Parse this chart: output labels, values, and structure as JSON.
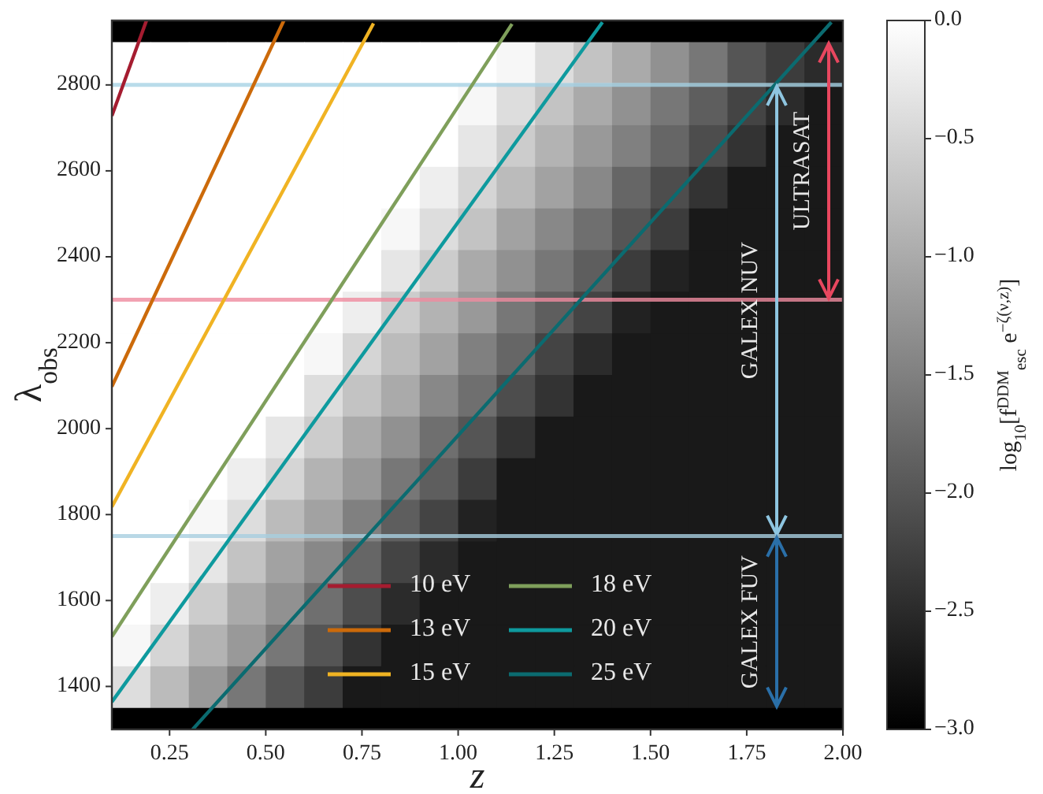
{
  "chart_data": [
    {
      "type": "heatmap",
      "clabel": "log$_{10}$[f$^{DDM}$$_{esc}$ e$^{−ζ(ν,z)}$]",
      "categories": [
        null,
        null,
        null,
        null,
        null,
        null,
        null,
        null,
        null,
        null,
        null,
        null,
        null,
        null,
        null,
        null,
        null,
        null,
        null
      ],
      "y_categories": [
        null,
        null,
        null,
        null,
        null,
        null,
        null,
        null,
        null,
        null,
        null,
        null,
        null,
        null,
        null,
        null
      ],
      "clim": [
        -3,
        0
      ],
      "cticks": [
        {
          "value": 0,
          "label": "0.0"
        },
        {
          "value": -0.5,
          "label": "−0.5"
        },
        {
          "value": -1,
          "label": "−1.0"
        },
        {
          "value": -1.5,
          "label": "−1.5"
        },
        {
          "value": -2,
          "label": "−2.0"
        },
        {
          "value": -2.5,
          "label": "−2.5"
        },
        {
          "value": -3,
          "label": "−3.0"
        }
      ],
      "cells": [
        [
          0,
          0,
          0,
          0,
          0,
          0,
          0,
          0,
          0,
          0,
          -0.1,
          -0.4,
          -0.7,
          -1.0,
          -1.3,
          -1.6,
          -2.0,
          -2.3,
          -2.5
        ],
        [
          0,
          0,
          0,
          0,
          0,
          0,
          0,
          0,
          0,
          -0.1,
          -0.4,
          -0.7,
          -1.0,
          -1.3,
          -1.6,
          -1.9,
          -2.2,
          -2.5,
          -2.7
        ],
        [
          0,
          0,
          0,
          0,
          0,
          0,
          0,
          0,
          0,
          -0.3,
          -0.6,
          -0.9,
          -1.2,
          -1.5,
          -1.8,
          -2.1,
          -2.4,
          -2.7,
          -2.7
        ],
        [
          0,
          0,
          0,
          0,
          0,
          0,
          0,
          0,
          -0.2,
          -0.5,
          -0.8,
          -1.1,
          -1.4,
          -1.8,
          -2.1,
          -2.4,
          -2.7,
          -2.7,
          -2.7
        ],
        [
          0,
          0,
          0,
          0,
          0,
          0,
          0,
          -0.1,
          -0.4,
          -0.7,
          -1.1,
          -1.4,
          -1.7,
          -2.0,
          -2.3,
          -2.7,
          -2.7,
          -2.7,
          -2.7
        ],
        [
          0,
          0,
          0,
          0,
          0,
          0,
          0,
          -0.3,
          -0.6,
          -1.0,
          -1.3,
          -1.6,
          -1.9,
          -2.3,
          -2.6,
          -2.7,
          -2.7,
          -2.7,
          -2.7
        ],
        [
          0,
          0,
          0,
          0,
          0,
          0,
          -0.2,
          -0.6,
          -0.9,
          -1.2,
          -1.6,
          -1.9,
          -2.2,
          -2.6,
          -2.7,
          -2.7,
          -2.7,
          -2.7,
          -2.7
        ],
        [
          0,
          0,
          0,
          0,
          0,
          -0.1,
          -0.5,
          -0.8,
          -1.1,
          -1.5,
          -1.8,
          -2.2,
          -2.5,
          -2.7,
          -2.7,
          -2.7,
          -2.7,
          -2.7,
          -2.7
        ],
        [
          0,
          0,
          0,
          0,
          0,
          -0.4,
          -0.7,
          -1.0,
          -1.4,
          -1.7,
          -2.1,
          -2.4,
          -2.7,
          -2.7,
          -2.7,
          -2.7,
          -2.7,
          -2.7,
          -2.7
        ],
        [
          0,
          0,
          0,
          0,
          -0.3,
          -0.6,
          -1.0,
          -1.3,
          -1.7,
          -2.0,
          -2.4,
          -2.7,
          -2.7,
          -2.7,
          -2.7,
          -2.7,
          -2.7,
          -2.7,
          -2.7
        ],
        [
          0,
          0,
          0,
          -0.2,
          -0.5,
          -0.9,
          -1.2,
          -1.6,
          -1.9,
          -2.3,
          -2.7,
          -2.7,
          -2.7,
          -2.7,
          -2.7,
          -2.7,
          -2.7,
          -2.7,
          -2.7
        ],
        [
          0,
          0,
          -0.1,
          -0.4,
          -0.8,
          -1.1,
          -1.5,
          -1.9,
          -2.2,
          -2.6,
          -2.7,
          -2.7,
          -2.7,
          -2.7,
          -2.7,
          -2.7,
          -2.7,
          -2.7,
          -2.7
        ],
        [
          0,
          0,
          -0.3,
          -0.7,
          -1.1,
          -1.4,
          -1.8,
          -2.2,
          -2.5,
          -2.7,
          -2.7,
          -2.7,
          -2.7,
          -2.7,
          -2.7,
          -2.7,
          -2.7,
          -2.7,
          -2.7
        ],
        [
          0,
          -0.2,
          -0.6,
          -1.0,
          -1.3,
          -1.7,
          -2.1,
          -2.5,
          -2.7,
          -2.7,
          -2.7,
          -2.7,
          -2.7,
          -2.7,
          -2.7,
          -2.7,
          -2.7,
          -2.7,
          -2.7
        ],
        [
          -0.1,
          -0.5,
          -0.9,
          -1.2,
          -1.6,
          -2.0,
          -2.4,
          -2.7,
          -2.7,
          -2.7,
          -2.7,
          -2.7,
          -2.7,
          -2.7,
          -2.7,
          -2.7,
          -2.7,
          -2.7,
          -2.7
        ],
        [
          -0.4,
          -0.8,
          -1.2,
          -1.6,
          -2.0,
          -2.3,
          -2.7,
          -2.7,
          -2.7,
          -2.7,
          -2.7,
          -2.7,
          -2.7,
          -2.7,
          -2.7,
          -2.7,
          -2.7,
          -2.7,
          -2.7
        ]
      ]
    },
    {
      "type": "line",
      "xlabel": "z",
      "ylabel": "λ$_{obs}$",
      "xlim": [
        0.1,
        2.0
      ],
      "ylim": [
        1300,
        2950
      ],
      "xticks": [
        {
          "value": 0.25,
          "label": "0.25"
        },
        {
          "value": 0.5,
          "label": "0.50"
        },
        {
          "value": 0.75,
          "label": "0.75"
        },
        {
          "value": 1.0,
          "label": "1.00"
        },
        {
          "value": 1.25,
          "label": "1.25"
        },
        {
          "value": 1.5,
          "label": "1.50"
        },
        {
          "value": 1.75,
          "label": "1.75"
        },
        {
          "value": 2.0,
          "label": "2.00"
        }
      ],
      "yticks": [
        1400,
        1600,
        1800,
        2000,
        2200,
        2400,
        2600,
        2800
      ],
      "series": [
        {
          "name": "10 eV",
          "color": "#a51c30",
          "x": [
            0.1,
            0.19
          ],
          "values": [
            2728,
            2950
          ]
        },
        {
          "name": "13 eV",
          "color": "#cc6a0a",
          "x": [
            0.1,
            0.547
          ],
          "values": [
            2098,
            2950
          ]
        },
        {
          "name": "15 eV",
          "color": "#f0b323",
          "x": [
            0.1,
            0.78
          ],
          "values": [
            1818,
            2943
          ]
        },
        {
          "name": "18 eV",
          "color": "#7f9f5b",
          "x": [
            0.1,
            1.14
          ],
          "values": [
            1516,
            2942
          ]
        },
        {
          "name": "20 eV",
          "color": "#0e9a9e",
          "x": [
            0.1,
            1.375
          ],
          "values": [
            1364,
            2946
          ]
        },
        {
          "name": "25 eV",
          "color": "#0b6b70",
          "x": [
            0.31,
            1.97
          ],
          "values": [
            1300,
            2946
          ]
        }
      ],
      "annotations": [
        "ULTRASAT",
        "GALEX NUV",
        "GALEX FUV"
      ],
      "ref_lines": [
        {
          "axis": "y",
          "value": 2800,
          "color": "#a8d4e6"
        },
        {
          "axis": "y",
          "value": 2300,
          "color": "#f08ca0"
        },
        {
          "axis": "y",
          "value": 1750,
          "color": "#a8cfe0"
        }
      ],
      "bands": [
        {
          "axis": "y",
          "from": 1300,
          "to": 1350,
          "color": "#000000"
        },
        {
          "axis": "y",
          "from": 2900,
          "to": 2950,
          "color": "#000000"
        }
      ],
      "legend": "bottom",
      "line_style": "solid"
    }
  ]
}
